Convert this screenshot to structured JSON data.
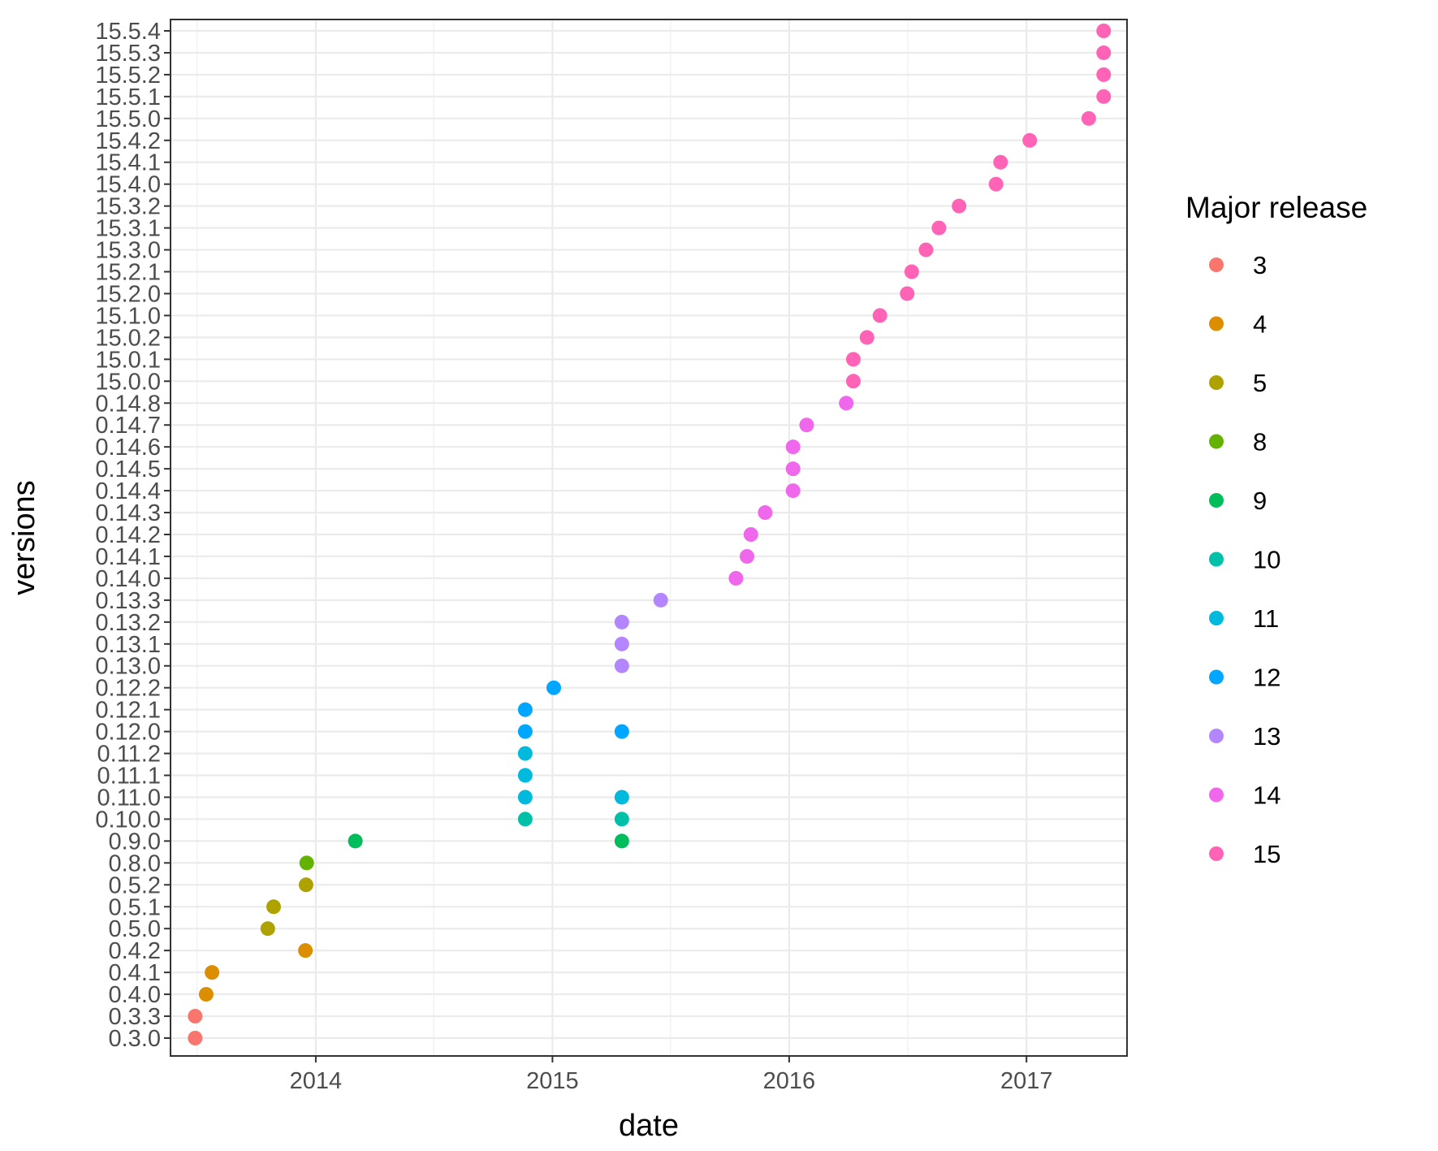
{
  "chart_data": {
    "type": "scatter",
    "xlabel": "date",
    "ylabel": "versions",
    "x_ticks": [
      "2014",
      "2015",
      "2016",
      "2017"
    ],
    "xlim": [
      "2013-05-22",
      "2017-06-05"
    ],
    "y_categories": [
      "0.3.0",
      "0.3.3",
      "0.4.0",
      "0.4.1",
      "0.4.2",
      "0.5.0",
      "0.5.1",
      "0.5.2",
      "0.8.0",
      "0.9.0",
      "0.10.0",
      "0.11.0",
      "0.11.1",
      "0.11.2",
      "0.12.0",
      "0.12.1",
      "0.12.2",
      "0.13.0",
      "0.13.1",
      "0.13.2",
      "0.13.3",
      "0.14.0",
      "0.14.1",
      "0.14.2",
      "0.14.3",
      "0.14.4",
      "0.14.5",
      "0.14.6",
      "0.14.7",
      "0.14.8",
      "15.0.0",
      "15.0.1",
      "15.0.2",
      "15.1.0",
      "15.2.0",
      "15.2.1",
      "15.3.0",
      "15.3.1",
      "15.3.2",
      "15.4.0",
      "15.4.1",
      "15.4.2",
      "15.5.0",
      "15.5.1",
      "15.5.2",
      "15.5.3",
      "15.5.4"
    ],
    "legend": {
      "title": "Major release",
      "placement": "right",
      "entries": [
        {
          "label": "3",
          "color": "#F8766D"
        },
        {
          "label": "4",
          "color": "#DB8E00"
        },
        {
          "label": "5",
          "color": "#AEA200"
        },
        {
          "label": "8",
          "color": "#64B200"
        },
        {
          "label": "9",
          "color": "#00BD5C"
        },
        {
          "label": "10",
          "color": "#00C1A7"
        },
        {
          "label": "11",
          "color": "#00BADE"
        },
        {
          "label": "12",
          "color": "#00A6FF"
        },
        {
          "label": "13",
          "color": "#B385FF"
        },
        {
          "label": "14",
          "color": "#EF67EB"
        },
        {
          "label": "15",
          "color": "#FF63B6"
        }
      ]
    },
    "grid": true,
    "points": [
      {
        "x": "2013-06-29",
        "y": "0.3.0",
        "major": "3"
      },
      {
        "x": "2013-06-29",
        "y": "0.3.3",
        "major": "3"
      },
      {
        "x": "2013-07-16",
        "y": "0.4.0",
        "major": "4"
      },
      {
        "x": "2013-07-25",
        "y": "0.4.1",
        "major": "4"
      },
      {
        "x": "2013-12-16",
        "y": "0.4.2",
        "major": "4"
      },
      {
        "x": "2013-10-19",
        "y": "0.5.0",
        "major": "5"
      },
      {
        "x": "2013-10-28",
        "y": "0.5.1",
        "major": "5"
      },
      {
        "x": "2013-12-17",
        "y": "0.5.2",
        "major": "5"
      },
      {
        "x": "2013-12-18",
        "y": "0.8.0",
        "major": "8"
      },
      {
        "x": "2014-03-03",
        "y": "0.9.0",
        "major": "9"
      },
      {
        "x": "2015-04-18",
        "y": "0.9.0",
        "major": "9"
      },
      {
        "x": "2014-11-20",
        "y": "0.10.0",
        "major": "10"
      },
      {
        "x": "2015-04-18",
        "y": "0.10.0",
        "major": "10"
      },
      {
        "x": "2014-11-20",
        "y": "0.11.0",
        "major": "11"
      },
      {
        "x": "2015-04-18",
        "y": "0.11.0",
        "major": "11"
      },
      {
        "x": "2014-11-20",
        "y": "0.11.1",
        "major": "11"
      },
      {
        "x": "2014-11-20",
        "y": "0.11.2",
        "major": "11"
      },
      {
        "x": "2014-11-20",
        "y": "0.12.0",
        "major": "12"
      },
      {
        "x": "2015-04-18",
        "y": "0.12.0",
        "major": "12"
      },
      {
        "x": "2014-11-20",
        "y": "0.12.1",
        "major": "12"
      },
      {
        "x": "2015-01-03",
        "y": "0.12.2",
        "major": "12"
      },
      {
        "x": "2015-04-18",
        "y": "0.13.0",
        "major": "13"
      },
      {
        "x": "2015-04-18",
        "y": "0.13.1",
        "major": "13"
      },
      {
        "x": "2015-04-18",
        "y": "0.13.2",
        "major": "13"
      },
      {
        "x": "2015-06-17",
        "y": "0.13.3",
        "major": "13"
      },
      {
        "x": "2015-10-11",
        "y": "0.14.0",
        "major": "14"
      },
      {
        "x": "2015-10-28",
        "y": "0.14.1",
        "major": "14"
      },
      {
        "x": "2015-11-03",
        "y": "0.14.2",
        "major": "14"
      },
      {
        "x": "2015-11-25",
        "y": "0.14.3",
        "major": "14"
      },
      {
        "x": "2016-01-07",
        "y": "0.14.4",
        "major": "14"
      },
      {
        "x": "2016-01-07",
        "y": "0.14.5",
        "major": "14"
      },
      {
        "x": "2016-01-07",
        "y": "0.14.6",
        "major": "14"
      },
      {
        "x": "2016-01-28",
        "y": "0.14.7",
        "major": "14"
      },
      {
        "x": "2016-03-29",
        "y": "0.14.8",
        "major": "14"
      },
      {
        "x": "2016-04-09",
        "y": "15.0.0",
        "major": "15"
      },
      {
        "x": "2016-04-09",
        "y": "15.0.1",
        "major": "15"
      },
      {
        "x": "2016-04-30",
        "y": "15.0.2",
        "major": "15"
      },
      {
        "x": "2016-05-20",
        "y": "15.1.0",
        "major": "15"
      },
      {
        "x": "2016-07-01",
        "y": "15.2.0",
        "major": "15"
      },
      {
        "x": "2016-07-08",
        "y": "15.2.1",
        "major": "15"
      },
      {
        "x": "2016-07-30",
        "y": "15.3.0",
        "major": "15"
      },
      {
        "x": "2016-08-19",
        "y": "15.3.1",
        "major": "15"
      },
      {
        "x": "2016-09-19",
        "y": "15.3.2",
        "major": "15"
      },
      {
        "x": "2016-11-15",
        "y": "15.4.0",
        "major": "15"
      },
      {
        "x": "2016-11-22",
        "y": "15.4.1",
        "major": "15"
      },
      {
        "x": "2017-01-06",
        "y": "15.4.2",
        "major": "15"
      },
      {
        "x": "2017-04-07",
        "y": "15.5.0",
        "major": "15"
      },
      {
        "x": "2017-04-30",
        "y": "15.5.1",
        "major": "15"
      },
      {
        "x": "2017-04-30",
        "y": "15.5.2",
        "major": "15"
      },
      {
        "x": "2017-04-30",
        "y": "15.5.3",
        "major": "15"
      },
      {
        "x": "2017-04-30",
        "y": "15.5.4",
        "major": "15"
      }
    ]
  }
}
